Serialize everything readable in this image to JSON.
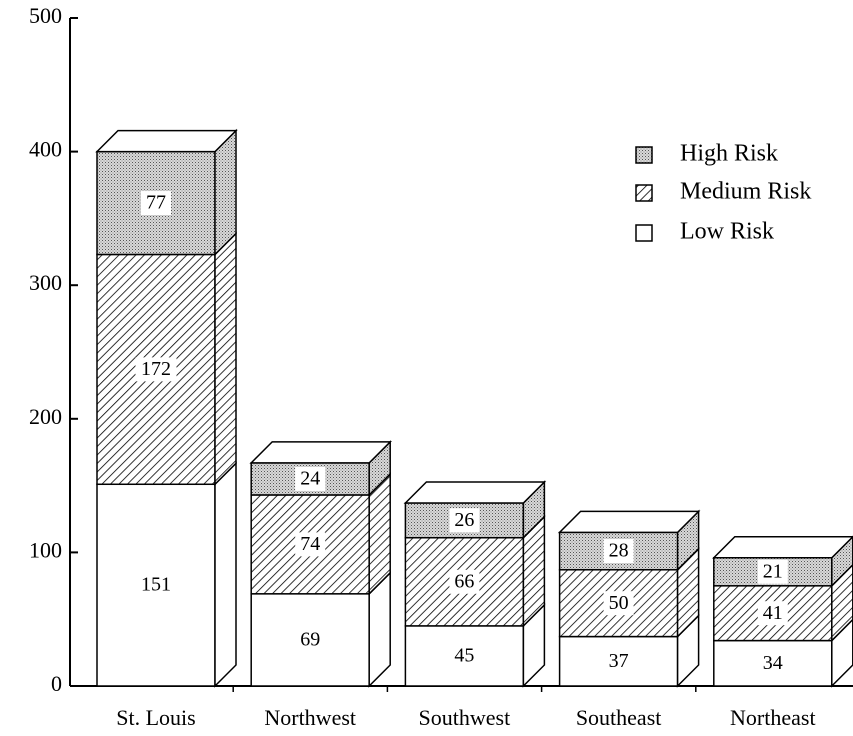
{
  "chart_data": {
    "type": "stacked_bar_3d",
    "categories": [
      "St. Louis",
      "Northwest",
      "Southwest",
      "Southeast",
      "Northeast"
    ],
    "series": [
      {
        "name": "Low Risk",
        "color": "#ffffff",
        "pattern": "none",
        "values": [
          151,
          69,
          45,
          37,
          34
        ]
      },
      {
        "name": "Medium Risk",
        "color": "#ffffff",
        "pattern": "hatch",
        "values": [
          172,
          74,
          66,
          50,
          41
        ]
      },
      {
        "name": "High Risk",
        "color": "#cccccc",
        "pattern": "dots",
        "values": [
          77,
          24,
          26,
          28,
          21
        ]
      }
    ],
    "ylim": [
      0,
      500
    ],
    "yticks": [
      0,
      100,
      200,
      300,
      400,
      500
    ],
    "legend": "upper right"
  }
}
